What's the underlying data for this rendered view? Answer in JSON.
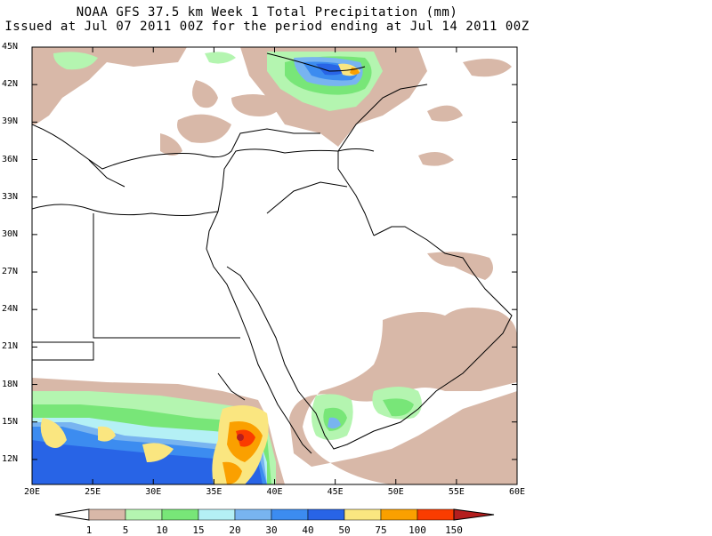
{
  "title_line1": "NOAA GFS 37.5 km Week 1 Total Precipitation (mm)",
  "title_line2": "Issued at Jul 07 2011 00Z for the period ending at Jul 14 2011 00Z",
  "lat_labels": [
    "45N",
    "42N",
    "39N",
    "36N",
    "33N",
    "30N",
    "27N",
    "24N",
    "21N",
    "18N",
    "15N",
    "12N"
  ],
  "lon_labels": [
    "20E",
    "25E",
    "30E",
    "35E",
    "40E",
    "45E",
    "50E",
    "55E",
    "60E"
  ],
  "colorbar": {
    "labels": [
      "1",
      "5",
      "10",
      "15",
      "20",
      "30",
      "40",
      "50",
      "75",
      "100",
      "150"
    ],
    "colors": [
      "#ffffff",
      "#d8b8a8",
      "#b4f5b0",
      "#78e678",
      "#b4f0f5",
      "#78b4f0",
      "#3c8cf0",
      "#2864e6",
      "#fae680",
      "#faa000",
      "#fa3c00",
      "#b41e1e"
    ]
  }
}
